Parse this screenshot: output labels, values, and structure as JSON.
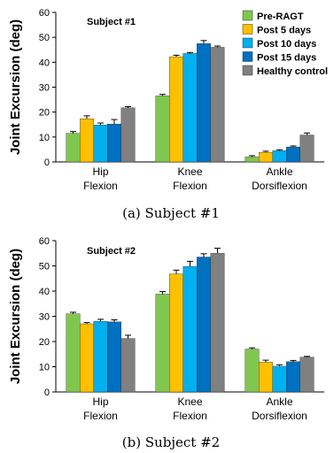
{
  "captions": [
    "(a)  Subject #1",
    "(b)  Subject #2"
  ],
  "colors": [
    "#80c750",
    "#ffc000",
    "#00b0f0",
    "#0070c0",
    "#808080"
  ],
  "chart_data": [
    {
      "type": "bar",
      "subject_label": "Subject #1",
      "ylabel": "Joint Excursion (deg)",
      "ylim": [
        0,
        60
      ],
      "yticks": [
        0,
        10,
        20,
        30,
        40,
        50,
        60
      ],
      "categories": [
        "Hip\nFlexion",
        "Knee\nFlexion",
        "Ankle\nDorsiflexion"
      ],
      "legend": "top-right",
      "series": [
        {
          "name": "Pre-RAGT",
          "values": [
            11.5,
            26.5,
            2
          ],
          "errors": [
            0.7,
            0.6,
            0.5
          ]
        },
        {
          "name": "Post 5 days",
          "values": [
            17.3,
            42.2,
            3.8
          ],
          "errors": [
            1.2,
            0.6,
            0.5
          ]
        },
        {
          "name": "Post 10 days",
          "values": [
            14.8,
            43.5,
            4.5
          ],
          "errors": [
            0.8,
            0.4,
            0.4
          ]
        },
        {
          "name": "Post 15 days",
          "values": [
            15.2,
            47.5,
            6
          ],
          "errors": [
            1.8,
            1.2,
            0.4
          ]
        },
        {
          "name": "Healthy control",
          "values": [
            21.7,
            46,
            10.8
          ],
          "errors": [
            0.5,
            0.5,
            0.8
          ]
        }
      ]
    },
    {
      "type": "bar",
      "subject_label": "Subject #2",
      "ylabel": "Joint Excursion (deg)",
      "ylim": [
        0,
        60
      ],
      "yticks": [
        0,
        10,
        20,
        30,
        40,
        50,
        60
      ],
      "categories": [
        "Hip\nFlexion",
        "Knee\nFlexion",
        "Ankle\nDorsiflexion"
      ],
      "series": [
        {
          "name": "Pre-RAGT",
          "values": [
            31,
            38.8,
            17
          ],
          "errors": [
            0.6,
            1.0,
            0.5
          ]
        },
        {
          "name": "Post 5 days",
          "values": [
            27,
            46.8,
            11.8
          ],
          "errors": [
            0.5,
            1.5,
            0.8
          ]
        },
        {
          "name": "Post 10 days",
          "values": [
            28,
            49.8,
            10.2
          ],
          "errors": [
            0.8,
            2.0,
            0.6
          ]
        },
        {
          "name": "Post 15 days",
          "values": [
            27.8,
            53.5,
            12
          ],
          "errors": [
            0.8,
            1.3,
            0.5
          ]
        },
        {
          "name": "Healthy control",
          "values": [
            21.2,
            55,
            13.8
          ],
          "errors": [
            1.3,
            2.0,
            0.3
          ]
        }
      ]
    }
  ]
}
